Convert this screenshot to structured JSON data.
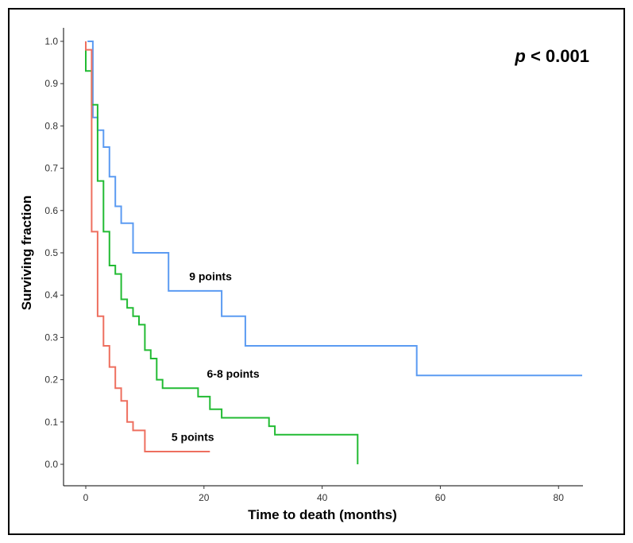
{
  "chart_data": {
    "type": "line",
    "subtype": "kaplan-meier step",
    "title": "",
    "xlabel": "Time to death (months)",
    "ylabel": "Surviving fraction",
    "xlim": [
      0,
      84
    ],
    "ylim": [
      0,
      1.0
    ],
    "x_ticks": [
      "0",
      "20",
      "40",
      "60",
      "80"
    ],
    "y_ticks": [
      "0.0",
      "0.1",
      "0.2",
      "0.3",
      "0.4",
      "0.5",
      "0.6",
      "0.7",
      "0.8",
      "0.9",
      "1.0"
    ],
    "x_tick_values": [
      0,
      20,
      40,
      60,
      80
    ],
    "y_tick_values": [
      0,
      0.1,
      0.2,
      0.3,
      0.4,
      0.5,
      0.6,
      0.7,
      0.8,
      0.9,
      1.0
    ],
    "grid": false,
    "annotation": {
      "italic": "p",
      "text": " < 0.001"
    },
    "series": [
      {
        "name": "9 points",
        "color": "#5b9bf2",
        "points": [
          [
            0.3,
            1.0
          ],
          [
            1.2,
            1.0
          ],
          [
            1.2,
            0.82
          ],
          [
            2.0,
            0.82
          ],
          [
            2.0,
            0.79
          ],
          [
            3.0,
            0.79
          ],
          [
            3.0,
            0.75
          ],
          [
            4.0,
            0.75
          ],
          [
            4.0,
            0.68
          ],
          [
            5.0,
            0.68
          ],
          [
            5.0,
            0.61
          ],
          [
            6.0,
            0.61
          ],
          [
            6.0,
            0.57
          ],
          [
            8.0,
            0.57
          ],
          [
            8.0,
            0.5
          ],
          [
            14.0,
            0.5
          ],
          [
            14.0,
            0.41
          ],
          [
            23.0,
            0.41
          ],
          [
            23.0,
            0.35
          ],
          [
            27.0,
            0.35
          ],
          [
            27.0,
            0.28
          ],
          [
            56.0,
            0.28
          ],
          [
            56.0,
            0.21
          ],
          [
            84.0,
            0.21
          ]
        ]
      },
      {
        "name": "6-8 points",
        "color": "#22bb33",
        "points": [
          [
            0.0,
            1.0
          ],
          [
            0.0,
            0.93
          ],
          [
            1.0,
            0.93
          ],
          [
            1.0,
            0.85
          ],
          [
            2.0,
            0.85
          ],
          [
            2.0,
            0.79
          ],
          [
            2.0,
            0.67
          ],
          [
            3.0,
            0.67
          ],
          [
            3.0,
            0.55
          ],
          [
            4.0,
            0.55
          ],
          [
            4.0,
            0.47
          ],
          [
            5.0,
            0.47
          ],
          [
            5.0,
            0.45
          ],
          [
            6.0,
            0.45
          ],
          [
            6.0,
            0.39
          ],
          [
            7.0,
            0.39
          ],
          [
            7.0,
            0.37
          ],
          [
            8.0,
            0.37
          ],
          [
            8.0,
            0.35
          ],
          [
            9.0,
            0.35
          ],
          [
            9.0,
            0.33
          ],
          [
            10.0,
            0.33
          ],
          [
            10.0,
            0.27
          ],
          [
            11.0,
            0.27
          ],
          [
            11.0,
            0.25
          ],
          [
            12.0,
            0.25
          ],
          [
            12.0,
            0.2
          ],
          [
            13.0,
            0.2
          ],
          [
            13.0,
            0.18
          ],
          [
            19.0,
            0.18
          ],
          [
            19.0,
            0.16
          ],
          [
            21.0,
            0.16
          ],
          [
            21.0,
            0.13
          ],
          [
            23.0,
            0.13
          ],
          [
            23.0,
            0.11
          ],
          [
            31.0,
            0.11
          ],
          [
            31.0,
            0.09
          ],
          [
            32.0,
            0.09
          ],
          [
            32.0,
            0.07
          ],
          [
            46.0,
            0.07
          ],
          [
            46.0,
            0.0
          ]
        ]
      },
      {
        "name": "5 points",
        "color": "#ee6f5f",
        "points": [
          [
            0.0,
            1.0
          ],
          [
            0.0,
            0.98
          ],
          [
            1.0,
            0.98
          ],
          [
            1.0,
            0.55
          ],
          [
            2.0,
            0.55
          ],
          [
            2.0,
            0.35
          ],
          [
            3.0,
            0.35
          ],
          [
            3.0,
            0.28
          ],
          [
            4.0,
            0.28
          ],
          [
            4.0,
            0.23
          ],
          [
            5.0,
            0.23
          ],
          [
            5.0,
            0.18
          ],
          [
            6.0,
            0.18
          ],
          [
            6.0,
            0.15
          ],
          [
            7.0,
            0.15
          ],
          [
            7.0,
            0.1
          ],
          [
            8.0,
            0.1
          ],
          [
            8.0,
            0.08
          ],
          [
            10.0,
            0.08
          ],
          [
            10.0,
            0.03
          ],
          [
            21.0,
            0.03
          ]
        ]
      }
    ],
    "curve_labels": [
      {
        "text": "9 points",
        "x": 17.5,
        "y": 0.435
      },
      {
        "text": "6-8 points",
        "x": 20.5,
        "y": 0.205
      },
      {
        "text": "5 points",
        "x": 14.5,
        "y": 0.055
      }
    ]
  }
}
